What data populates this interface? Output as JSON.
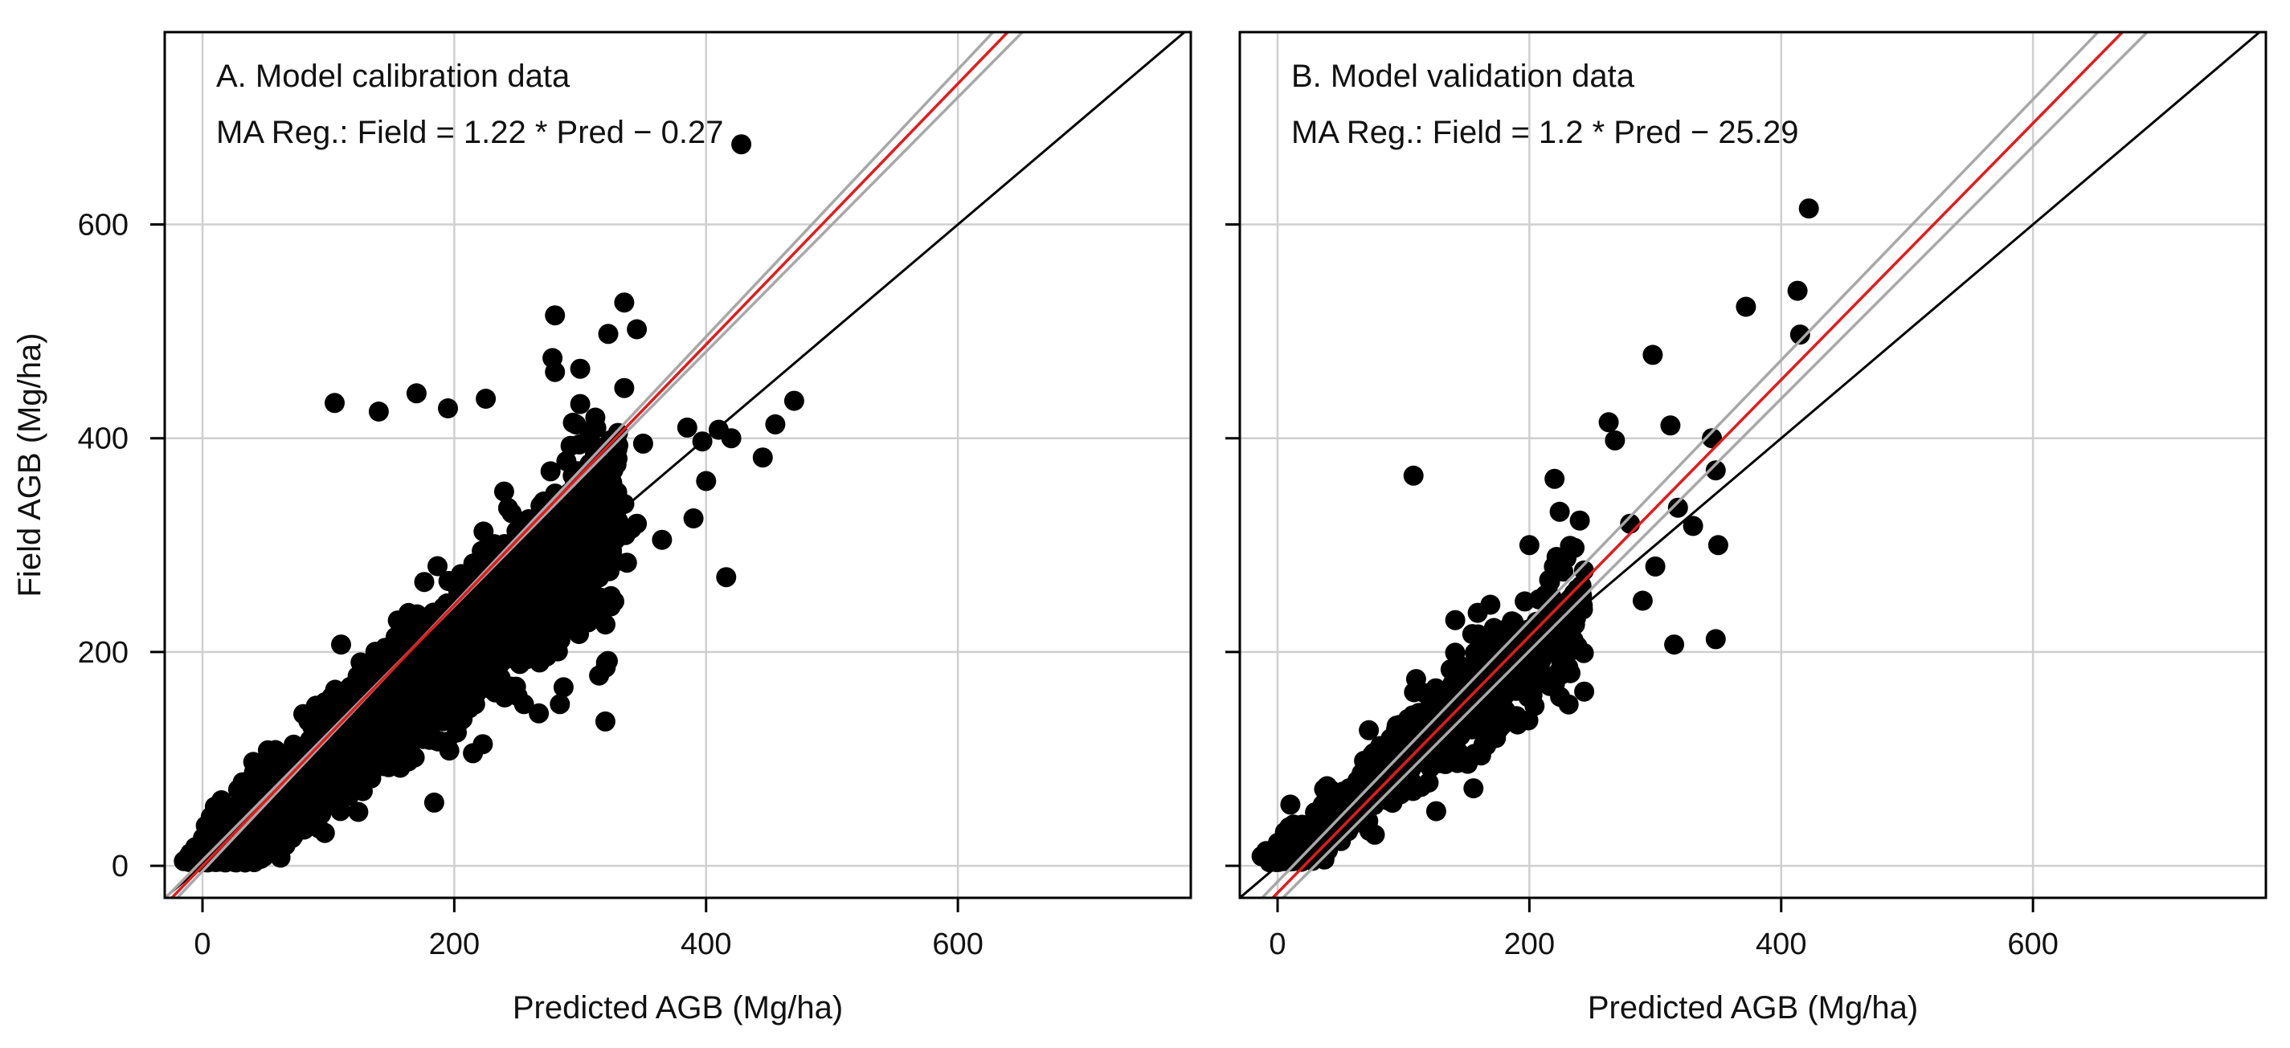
{
  "chart_data": [
    {
      "type": "scatter",
      "panel_title": "A. Model calibration data",
      "equation": "MA Reg.: Field = 1.22 * Pred − 0.27",
      "xlabel": "Predicted AGB (Mg/ha)",
      "ylabel": "Field AGB (Mg/ha)",
      "xlim": [
        -30,
        785
      ],
      "ylim": [
        -30,
        780
      ],
      "xticks": [
        0,
        200,
        400,
        600
      ],
      "yticks": [
        0,
        200,
        400,
        600
      ],
      "grid": true,
      "reg_line": {
        "slope": 1.22,
        "intercept": -0.27,
        "color": "#e41a1c"
      },
      "ci_lines": [
        {
          "slope": 1.25,
          "intercept": -5,
          "color": "#a8a8a8"
        },
        {
          "slope": 1.19,
          "intercept": 5,
          "color": "#a8a8a8"
        }
      ],
      "one_to_one": {
        "slope": 1,
        "intercept": 0,
        "color": "#000000"
      },
      "dense_cloud": {
        "n": 2600,
        "x_range": [
          0,
          330
        ],
        "relation_slope": 1.0,
        "spread": 38
      },
      "points": [
        [
          428,
          675
        ],
        [
          335,
          527
        ],
        [
          280,
          515
        ],
        [
          345,
          502
        ],
        [
          278,
          475
        ],
        [
          300,
          465
        ],
        [
          280,
          462
        ],
        [
          105,
          433
        ],
        [
          140,
          425
        ],
        [
          170,
          442
        ],
        [
          225,
          437
        ],
        [
          195,
          428
        ],
        [
          335,
          447
        ],
        [
          300,
          432
        ],
        [
          410,
          408
        ],
        [
          470,
          435
        ],
        [
          455,
          413
        ],
        [
          330,
          405
        ],
        [
          397,
          397
        ],
        [
          445,
          382
        ],
        [
          420,
          400
        ],
        [
          390,
          325
        ],
        [
          416,
          270
        ],
        [
          365,
          305
        ],
        [
          400,
          360
        ],
        [
          385,
          410
        ],
        [
          350,
          395
        ],
        [
          320,
          135
        ],
        [
          315,
          178
        ],
        [
          345,
          320
        ]
      ]
    },
    {
      "type": "scatter",
      "panel_title": "B. Model validation data",
      "equation": "MA Reg.: Field = 1.2 * Pred − 25.29",
      "xlabel": "Predicted AGB (Mg/ha)",
      "ylabel": "",
      "xlim": [
        -30,
        785
      ],
      "ylim": [
        -30,
        780
      ],
      "xticks": [
        0,
        200,
        400,
        600
      ],
      "yticks": [
        0,
        200,
        400,
        600
      ],
      "grid": true,
      "reg_line": {
        "slope": 1.2,
        "intercept": -25.29,
        "color": "#e41a1c"
      },
      "ci_lines": [
        {
          "slope": 1.22,
          "intercept": -15,
          "color": "#a8a8a8"
        },
        {
          "slope": 1.18,
          "intercept": -35,
          "color": "#a8a8a8"
        }
      ],
      "one_to_one": {
        "slope": 1,
        "intercept": 0,
        "color": "#000000"
      },
      "dense_cloud": {
        "n": 750,
        "x_range": [
          0,
          240
        ],
        "relation_slope": 1.0,
        "spread": 30
      },
      "points": [
        [
          422,
          615
        ],
        [
          372,
          523
        ],
        [
          413,
          538
        ],
        [
          415,
          497
        ],
        [
          298,
          478
        ],
        [
          108,
          365
        ],
        [
          263,
          415
        ],
        [
          268,
          398
        ],
        [
          312,
          412
        ],
        [
          345,
          400
        ],
        [
          348,
          370
        ],
        [
          318,
          335
        ],
        [
          330,
          318
        ],
        [
          350,
          300
        ],
        [
          348,
          212
        ],
        [
          315,
          207
        ],
        [
          300,
          280
        ],
        [
          290,
          248
        ],
        [
          280,
          320
        ],
        [
          220,
          362
        ],
        [
          240,
          323
        ],
        [
          200,
          300
        ]
      ]
    }
  ]
}
